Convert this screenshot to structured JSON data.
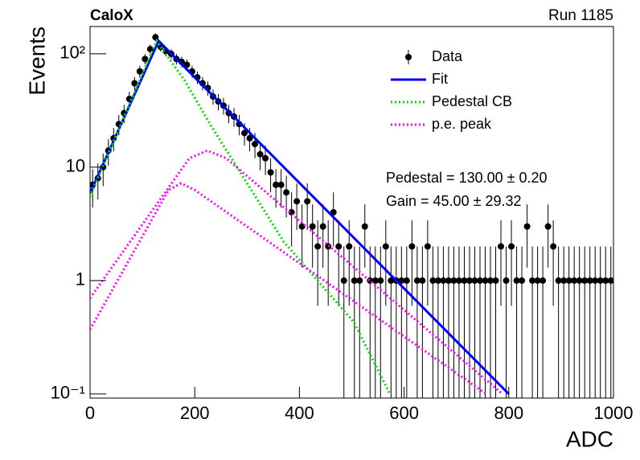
{
  "chart_data": {
    "type": "scatter",
    "title": "CaloX",
    "subtitle": "Run 1185",
    "x_label": "ADC",
    "y_label": "Events",
    "xlim": [
      0,
      1000
    ],
    "ylim": [
      0.092,
      174
    ],
    "log_y": true,
    "xticks": [
      0,
      200,
      400,
      600,
      800,
      1000
    ],
    "yticks": [
      {
        "value": 0.1,
        "label": "10⁻¹"
      },
      1,
      10,
      {
        "value": 100,
        "label": "10²"
      }
    ],
    "annotations": [
      "Pedestal = 130.00 ± 0.20",
      "Gain = 45.00 ± 29.32"
    ],
    "legend": "upper right",
    "series": [
      {
        "name": "Data",
        "color": "#000000",
        "style": "points",
        "x": [
          5,
          15,
          25,
          35,
          45,
          55,
          65,
          75,
          85,
          95,
          105,
          115,
          125,
          135,
          145,
          155,
          165,
          175,
          185,
          195,
          205,
          215,
          225,
          235,
          245,
          255,
          265,
          275,
          285,
          295,
          305,
          315,
          325,
          335,
          345,
          355,
          365,
          375,
          385,
          395,
          405,
          415,
          425,
          435,
          445,
          455,
          465,
          475,
          485,
          495,
          505,
          515,
          525,
          535,
          545,
          555,
          565,
          575,
          585,
          595,
          605,
          615,
          625,
          635,
          645,
          655,
          665,
          675,
          685,
          695,
          705,
          715,
          725,
          735,
          745,
          755,
          765,
          775,
          785,
          795,
          805,
          815,
          825,
          835,
          845,
          855,
          865,
          875,
          885,
          895,
          905,
          915,
          925,
          935,
          945,
          955,
          965,
          975,
          985,
          995
        ],
        "values": [
          7,
          8,
          10,
          14,
          18,
          24,
          30,
          40,
          55,
          70,
          90,
          110,
          140,
          115,
          105,
          100,
          90,
          85,
          80,
          70,
          62,
          55,
          50,
          42,
          38,
          35,
          30,
          28,
          24,
          20,
          18,
          16,
          13,
          12,
          9,
          7,
          7,
          6,
          4,
          5,
          3,
          5,
          3,
          2,
          3,
          2,
          4,
          2,
          1,
          2,
          1,
          1,
          3,
          1,
          1,
          1,
          2,
          1,
          1,
          1,
          1,
          2,
          1,
          1,
          2,
          1,
          1,
          1,
          1,
          1,
          1,
          1,
          1,
          1,
          1,
          1,
          1,
          1,
          2,
          1,
          2,
          1,
          1,
          3,
          1,
          1,
          1,
          3,
          2,
          1,
          1,
          1,
          1,
          1,
          1,
          1,
          1,
          1,
          1,
          1
        ],
        "errors": [
          2.6,
          2.8,
          3.2,
          3.7,
          4.2,
          4.9,
          5.5,
          6.3,
          7.4,
          8.4,
          9.5,
          10.5,
          11.8,
          10.7,
          10.2,
          10,
          9.5,
          9.2,
          8.9,
          8.4,
          7.9,
          7.4,
          7.1,
          6.5,
          6.2,
          5.9,
          5.5,
          5.3,
          4.9,
          4.5,
          4.2,
          4,
          3.6,
          3.5,
          3,
          2.6,
          2.6,
          2.4,
          2,
          2.2,
          1.7,
          2.2,
          1.7,
          1.4,
          1.7,
          1.4,
          2,
          1.4,
          1,
          1.4,
          1,
          1,
          1.7,
          1,
          1,
          1,
          1.4,
          1,
          1,
          1,
          1,
          1.4,
          1,
          1,
          1.4,
          1,
          1,
          1,
          1,
          1,
          1,
          1,
          1,
          1,
          1,
          1,
          1,
          1,
          1.4,
          1,
          1.4,
          1,
          1,
          1.7,
          1,
          1,
          1,
          1.7,
          1.4,
          1,
          1,
          1,
          1,
          1,
          1,
          1,
          1,
          1,
          1,
          1
        ]
      },
      {
        "name": "Fit",
        "color": "#0000ff",
        "style": "solid",
        "x": [
          0,
          131,
          800
        ],
        "values": [
          5.9,
          130,
          0.1
        ]
      },
      {
        "name": "Pedestal CB",
        "color": "#00dd00",
        "style": "dotted",
        "x": [
          0,
          127,
          181,
          230,
          370,
          504,
          573
        ],
        "values": [
          5.5,
          130,
          58,
          23.7,
          2.2,
          0.43,
          0.1
        ]
      },
      {
        "name": "p.e. peak",
        "color": "#ff00ff",
        "style": "dotted",
        "x": [
          0,
          190,
          224,
          260,
          788,
          null,
          0,
          150,
          174,
          200,
          757
        ],
        "values": [
          0.7,
          12,
          14,
          12,
          0.1,
          null,
          0.37,
          6.3,
          7.2,
          6.3,
          0.1
        ]
      }
    ]
  }
}
